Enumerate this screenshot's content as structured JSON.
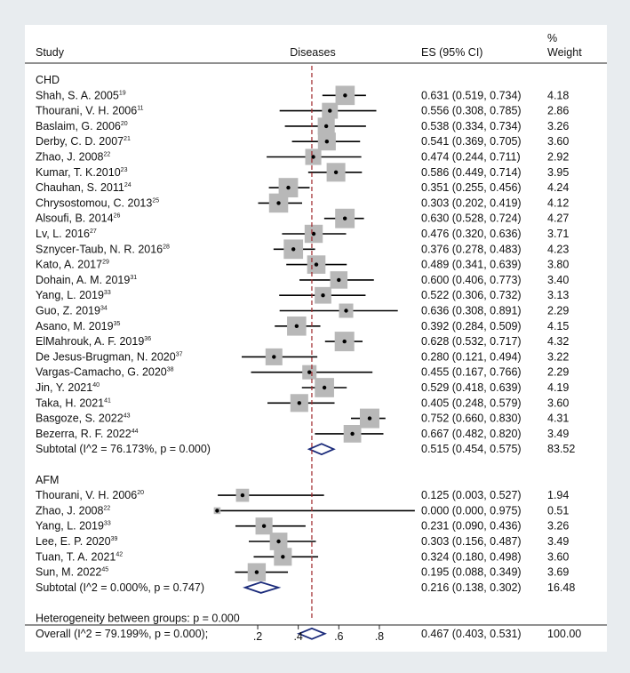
{
  "chart_data": {
    "type": "forest",
    "xlabel": "Diseases",
    "x_ticks": [
      ".2",
      ".4",
      ".6",
      ".8"
    ],
    "x_tick_values": [
      0.2,
      0.4,
      0.6,
      0.8
    ],
    "x_range": [
      -0.05,
      0.98
    ],
    "reference_line": 0.467,
    "headers": {
      "study": "Study",
      "es": "ES (95% CI)",
      "weight_line1": "%",
      "weight_line2": "Weight"
    },
    "groups": [
      {
        "name": "CHD",
        "studies": [
          {
            "label": "Shah, S. A. 2005",
            "sup": "19",
            "es": 0.631,
            "lo": 0.519,
            "hi": 0.734,
            "ci_text": "0.631 (0.519, 0.734)",
            "weight": "4.18"
          },
          {
            "label": "Thourani, V. H. 2006",
            "sup": "11",
            "es": 0.556,
            "lo": 0.308,
            "hi": 0.785,
            "ci_text": "0.556 (0.308, 0.785)",
            "weight": "2.86"
          },
          {
            "label": "Baslaim, G. 2006",
            "sup": "20",
            "es": 0.538,
            "lo": 0.334,
            "hi": 0.734,
            "ci_text": "0.538 (0.334, 0.734)",
            "weight": "3.26"
          },
          {
            "label": "Derby, C. D. 2007",
            "sup": "21",
            "es": 0.541,
            "lo": 0.369,
            "hi": 0.705,
            "ci_text": "0.541 (0.369, 0.705)",
            "weight": "3.60"
          },
          {
            "label": "Zhao, J. 2008",
            "sup": "22",
            "es": 0.474,
            "lo": 0.244,
            "hi": 0.711,
            "ci_text": "0.474 (0.244, 0.711)",
            "weight": "2.92"
          },
          {
            "label": "Kumar, T. K.2010",
            "sup": "23",
            "es": 0.586,
            "lo": 0.449,
            "hi": 0.714,
            "ci_text": "0.586 (0.449, 0.714)",
            "weight": "3.95"
          },
          {
            "label": "Chauhan, S. 2011",
            "sup": "24",
            "es": 0.351,
            "lo": 0.255,
            "hi": 0.456,
            "ci_text": "0.351 (0.255, 0.456)",
            "weight": "4.24"
          },
          {
            "label": "Chrysostomou, C. 2013",
            "sup": "25",
            "es": 0.303,
            "lo": 0.202,
            "hi": 0.419,
            "ci_text": "0.303 (0.202, 0.419)",
            "weight": "4.12"
          },
          {
            "label": "Alsoufi, B. 2014",
            "sup": "26",
            "es": 0.63,
            "lo": 0.528,
            "hi": 0.724,
            "ci_text": "0.630 (0.528, 0.724)",
            "weight": "4.27"
          },
          {
            "label": "Lv, L. 2016",
            "sup": "27",
            "es": 0.476,
            "lo": 0.32,
            "hi": 0.636,
            "ci_text": "0.476 (0.320, 0.636)",
            "weight": "3.71"
          },
          {
            "label": "Sznycer-Taub, N. R. 2016",
            "sup": "28",
            "es": 0.376,
            "lo": 0.278,
            "hi": 0.483,
            "ci_text": "0.376 (0.278, 0.483)",
            "weight": "4.23"
          },
          {
            "label": "Kato, A. 2017",
            "sup": "29",
            "es": 0.489,
            "lo": 0.341,
            "hi": 0.639,
            "ci_text": "0.489 (0.341, 0.639)",
            "weight": "3.80"
          },
          {
            "label": "Dohain, A. M. 2019",
            "sup": "31",
            "es": 0.6,
            "lo": 0.406,
            "hi": 0.773,
            "ci_text": "0.600 (0.406, 0.773)",
            "weight": "3.40"
          },
          {
            "label": "Yang, L. 2019",
            "sup": "33",
            "es": 0.522,
            "lo": 0.306,
            "hi": 0.732,
            "ci_text": "0.522 (0.306, 0.732)",
            "weight": "3.13"
          },
          {
            "label": "Guo, Z. 2019",
            "sup": "34",
            "es": 0.636,
            "lo": 0.308,
            "hi": 0.891,
            "ci_text": "0.636 (0.308, 0.891)",
            "weight": "2.29"
          },
          {
            "label": "Asano, M. 2019",
            "sup": "35",
            "es": 0.392,
            "lo": 0.284,
            "hi": 0.509,
            "ci_text": "0.392 (0.284, 0.509)",
            "weight": "4.15"
          },
          {
            "label": "ElMahrouk, A. F. 2019",
            "sup": "36",
            "es": 0.628,
            "lo": 0.532,
            "hi": 0.717,
            "ci_text": "0.628 (0.532, 0.717)",
            "weight": "4.32"
          },
          {
            "label": "De Jesus-Brugman, N. 2020",
            "sup": "37",
            "es": 0.28,
            "lo": 0.121,
            "hi": 0.494,
            "ci_text": "0.280 (0.121, 0.494)",
            "weight": "3.22"
          },
          {
            "label": "Vargas-Camacho, G. 2020",
            "sup": "38",
            "es": 0.455,
            "lo": 0.167,
            "hi": 0.766,
            "ci_text": "0.455 (0.167, 0.766)",
            "weight": "2.29"
          },
          {
            "label": "Jin, Y. 2021",
            "sup": "40",
            "es": 0.529,
            "lo": 0.418,
            "hi": 0.639,
            "ci_text": "0.529 (0.418, 0.639)",
            "weight": "4.19"
          },
          {
            "label": "Taka, H. 2021",
            "sup": "41",
            "es": 0.405,
            "lo": 0.248,
            "hi": 0.579,
            "ci_text": "0.405 (0.248, 0.579)",
            "weight": "3.60"
          },
          {
            "label": "Basgoze, S. 2022",
            "sup": "43",
            "es": 0.752,
            "lo": 0.66,
            "hi": 0.83,
            "ci_text": "0.752 (0.660, 0.830)",
            "weight": "4.31"
          },
          {
            "label": "Bezerra, R. F. 2022",
            "sup": "44",
            "es": 0.667,
            "lo": 0.482,
            "hi": 0.82,
            "ci_text": "0.667 (0.482, 0.820)",
            "weight": "3.49"
          }
        ],
        "subtotal": {
          "label": "Subtotal  (I^2 = 76.173%, p = 0.000)",
          "es": 0.515,
          "lo": 0.454,
          "hi": 0.575,
          "ci_text": "0.515 (0.454, 0.575)",
          "weight": "83.52"
        }
      },
      {
        "name": "AFM",
        "studies": [
          {
            "label": "Thourani, V. H. 2006",
            "sup": "20",
            "es": 0.125,
            "lo": 0.003,
            "hi": 0.527,
            "ci_text": "0.125 (0.003, 0.527)",
            "weight": "1.94"
          },
          {
            "label": "Zhao, J. 2008",
            "sup": "22",
            "es": 0.0,
            "lo": 0.0,
            "hi": 0.975,
            "ci_text": "0.000 (0.000, 0.975)",
            "weight": "0.51"
          },
          {
            "label": "Yang, L. 2019",
            "sup": "33",
            "es": 0.231,
            "lo": 0.09,
            "hi": 0.436,
            "ci_text": "0.231 (0.090, 0.436)",
            "weight": "3.26"
          },
          {
            "label": "Lee, E. P. 2020",
            "sup": "39",
            "es": 0.303,
            "lo": 0.156,
            "hi": 0.487,
            "ci_text": "0.303 (0.156, 0.487)",
            "weight": "3.49"
          },
          {
            "label": "Tuan, T. A. 2021",
            "sup": "42",
            "es": 0.324,
            "lo": 0.18,
            "hi": 0.498,
            "ci_text": "0.324 (0.180, 0.498)",
            "weight": "3.60"
          },
          {
            "label": "Sun, M. 2022",
            "sup": "45",
            "es": 0.195,
            "lo": 0.088,
            "hi": 0.349,
            "ci_text": "0.195 (0.088, 0.349)",
            "weight": "3.69"
          }
        ],
        "subtotal": {
          "label": "Subtotal  (I^2 = 0.000%, p = 0.747)",
          "es": 0.216,
          "lo": 0.138,
          "hi": 0.302,
          "ci_text": "0.216 (0.138, 0.302)",
          "weight": "16.48"
        }
      }
    ],
    "heterogeneity": "Heterogeneity between groups: p = 0.000",
    "overall": {
      "label": "Overall  (I^2 = 79.199%, p = 0.000);",
      "es": 0.467,
      "lo": 0.403,
      "hi": 0.531,
      "ci_text": "0.467 (0.403, 0.531)",
      "weight": "100.00"
    }
  },
  "colors": {
    "background": "#e8ecef",
    "panel": "#ffffff",
    "box": "#b8b8b8",
    "diamond": "#1a2a7a",
    "reference_line": "#a0282c",
    "text": "#111111"
  }
}
